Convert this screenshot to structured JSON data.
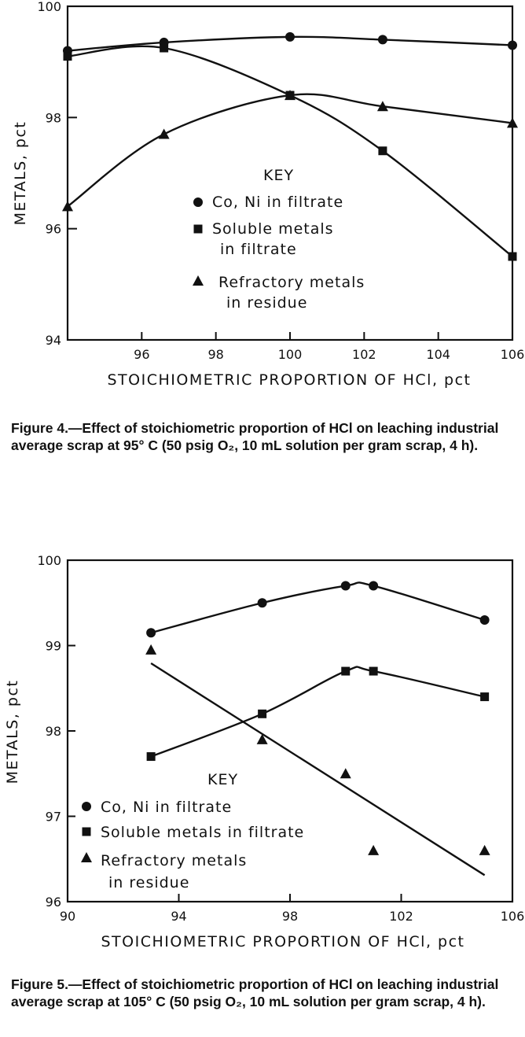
{
  "chart_data": [
    {
      "type": "line",
      "title": "",
      "xlabel": "STOICHIOMETRIC PROPORTION OF HCl, pct",
      "ylabel": "METALS, pct",
      "xlim": [
        94,
        106
      ],
      "ylim": [
        94,
        100
      ],
      "xticks": [
        "96",
        "98",
        "100",
        "102",
        "104",
        "106"
      ],
      "yticks": [
        "94",
        "96",
        "98",
        "100"
      ],
      "key_title": "KEY",
      "series": [
        {
          "name": "Co, Ni in filtrate",
          "marker": "circle",
          "x": [
            94.0,
            96.6,
            100.0,
            102.5,
            106.0
          ],
          "y": [
            99.2,
            99.35,
            99.45,
            99.4,
            99.3
          ]
        },
        {
          "name": "Soluble metals in filtrate",
          "marker": "square",
          "x": [
            94.0,
            96.6,
            100.0,
            102.5,
            106.0
          ],
          "y": [
            99.1,
            99.25,
            98.4,
            97.4,
            95.5
          ]
        },
        {
          "name": "Refractory metals in residue",
          "marker": "triangle",
          "x": [
            94.0,
            96.6,
            100.0,
            102.5,
            106.0
          ],
          "y": [
            96.4,
            97.7,
            98.4,
            98.2,
            97.9
          ]
        }
      ],
      "legend_lines": [
        [
          "Co, Ni in filtrate"
        ],
        [
          "Soluble metals",
          "in filtrate"
        ],
        [
          "Refractory metals",
          "in residue"
        ]
      ],
      "legend": "center",
      "caption": "Figure 4.—Effect of stoichiometric proportion of HCl on leaching industrial average scrap at 95° C (50 psig O₂, 10 mL solution per gram scrap, 4 h)."
    },
    {
      "type": "line",
      "title": "",
      "xlabel": "STOICHIOMETRIC PROPORTION OF HCl, pct",
      "ylabel": "METALS, pct",
      "xlim": [
        90,
        106
      ],
      "ylim": [
        96,
        100
      ],
      "xticks": [
        "90",
        "94",
        "98",
        "102",
        "106"
      ],
      "yticks": [
        "96",
        "97",
        "98",
        "99",
        "100"
      ],
      "key_title": "KEY",
      "series": [
        {
          "name": "Co, Ni in filtrate",
          "marker": "circle",
          "x": [
            93,
            97,
            100,
            101,
            105
          ],
          "y": [
            99.15,
            99.5,
            99.7,
            99.7,
            99.3
          ]
        },
        {
          "name": "Soluble metals in filtrate",
          "marker": "square",
          "x": [
            93,
            97,
            100,
            101,
            105
          ],
          "y": [
            97.7,
            98.2,
            98.7,
            98.7,
            98.4
          ]
        },
        {
          "name": "Refractory metals in residue",
          "marker": "triangle",
          "x": [
            93,
            97,
            100,
            101,
            105
          ],
          "y": [
            98.95,
            97.9,
            97.5,
            96.6,
            96.6
          ]
        }
      ],
      "legend_lines": [
        [
          "Co, Ni in filtrate"
        ],
        [
          "Soluble metals in filtrate"
        ],
        [
          "Refractory metals",
          "in residue"
        ]
      ],
      "legend": "lower-left",
      "caption": "Figure 5.—Effect of stoichiometric proportion of HCl on leaching industrial average scrap at 105° C (50 psig O₂, 10 mL solution per gram scrap, 4 h)."
    }
  ]
}
